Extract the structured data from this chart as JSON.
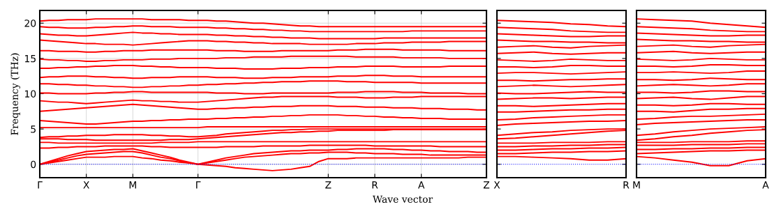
{
  "chart_data": [
    {
      "type": "line",
      "xlabel": "Wave vector",
      "ylabel": "Frequency (THz)",
      "categories": [
        "Γ",
        null,
        null,
        null,
        null,
        "X",
        null,
        null,
        null,
        null,
        "M",
        null,
        null,
        null,
        null,
        null,
        null,
        "Γ",
        null,
        null,
        null,
        null,
        null,
        null,
        null,
        null,
        null,
        null,
        null,
        null,
        null,
        "Z",
        null,
        null,
        null,
        null,
        "R",
        null,
        null,
        null,
        null,
        "A",
        null,
        null,
        null,
        null,
        null,
        null,
        "Z"
      ],
      "ylim": [
        -1.9,
        21.8
      ],
      "yticks": [
        0,
        5,
        10,
        15,
        20
      ],
      "grid": true,
      "ref_lines": [
        {
          "axis": "y",
          "value": 0,
          "color": "#0000ff",
          "line_style": "dotted"
        }
      ],
      "series": [
        {
          "color": "#ff0000",
          "values": [
            0,
            0.2,
            0.4,
            0.6,
            0.8,
            1.0,
            1.0,
            1.0,
            1.1,
            1.1,
            1.1,
            0.9,
            0.8,
            0.6,
            0.5,
            0.3,
            0.2,
            0,
            -0.1,
            -0.2,
            -0.3,
            -0.5,
            -0.6,
            -0.7,
            -0.8,
            -0.9,
            -0.8,
            -0.7,
            -0.5,
            -0.3,
            0.4,
            0.8,
            0.8,
            0.8,
            0.9,
            0.9,
            0.9,
            0.9,
            0.9,
            0.9,
            0.9,
            0.9,
            0.9,
            0.9,
            0.9,
            0.9,
            1.0,
            1.0,
            1.0
          ]
        },
        {
          "color": "#ff0000",
          "values": [
            0,
            0.3,
            0.6,
            0.9,
            1.2,
            1.4,
            1.5,
            1.6,
            1.7,
            1.8,
            1.8,
            1.6,
            1.3,
            1.0,
            0.8,
            0.5,
            0.2,
            0,
            0.2,
            0.4,
            0.6,
            0.8,
            1.0,
            1.1,
            1.2,
            1.3,
            1.4,
            1.5,
            1.5,
            1.6,
            1.6,
            1.7,
            1.7,
            1.7,
            1.6,
            1.6,
            1.5,
            1.5,
            1.5,
            1.4,
            1.4,
            1.4,
            1.3,
            1.3,
            1.3,
            1.3,
            1.3,
            1.3,
            1.3
          ]
        },
        {
          "color": "#ff0000",
          "values": [
            0,
            0.4,
            0.8,
            1.2,
            1.5,
            1.8,
            1.9,
            2.0,
            2.1,
            2.1,
            2.2,
            1.9,
            1.6,
            1.3,
            1.0,
            0.6,
            0.3,
            0,
            0.3,
            0.6,
            0.9,
            1.1,
            1.3,
            1.5,
            1.6,
            1.7,
            1.8,
            1.9,
            1.9,
            2.0,
            2.0,
            2.0,
            2.1,
            2.1,
            2.2,
            2.2,
            2.2,
            2.2,
            2.1,
            2.1,
            2.0,
            2.0,
            1.9,
            1.9,
            1.8,
            1.8,
            1.8,
            1.7,
            1.7
          ]
        },
        {
          "color": "#ff0000",
          "values": [
            2.3,
            2.3,
            2.4,
            2.4,
            2.5,
            2.5,
            2.5,
            2.6,
            2.6,
            2.6,
            2.6,
            2.6,
            2.5,
            2.5,
            2.4,
            2.4,
            2.4,
            2.4,
            2.4,
            2.4,
            2.5,
            2.5,
            2.5,
            2.5,
            2.6,
            2.6,
            2.6,
            2.6,
            2.6,
            2.7,
            2.7,
            2.7,
            2.7,
            2.7,
            2.7,
            2.7,
            2.6,
            2.6,
            2.6,
            2.6,
            2.6,
            2.6,
            2.6,
            2.5,
            2.5,
            2.5,
            2.5,
            2.5,
            2.5
          ]
        },
        {
          "color": "#ff0000",
          "values": [
            3.1,
            3.1,
            3.0,
            3.0,
            3.0,
            3.0,
            3.0,
            3.0,
            3.0,
            3.0,
            3.0,
            3.0,
            3.0,
            3.1,
            3.1,
            3.1,
            3.1,
            3.2,
            3.2,
            3.2,
            3.2,
            3.2,
            3.2,
            3.2,
            3.2,
            3.2,
            3.2,
            3.2,
            3.2,
            3.2,
            3.2,
            3.2,
            3.2,
            3.2,
            3.2,
            3.2,
            3.2,
            3.2,
            3.2,
            3.2,
            3.2,
            3.2,
            3.2,
            3.2,
            3.2,
            3.2,
            3.2,
            3.2,
            3.2
          ]
        },
        {
          "color": "#ff0000",
          "values": [
            3.6,
            3.6,
            3.6,
            3.5,
            3.5,
            3.5,
            3.4,
            3.4,
            3.4,
            3.4,
            3.4,
            3.4,
            3.4,
            3.4,
            3.5,
            3.5,
            3.5,
            3.6,
            3.7,
            3.8,
            3.9,
            4.0,
            4.1,
            4.2,
            4.3,
            4.4,
            4.5,
            4.5,
            4.6,
            4.6,
            4.7,
            4.7,
            4.8,
            4.8,
            4.8,
            4.8,
            4.8,
            4.8,
            4.9,
            4.9,
            4.9,
            4.9,
            4.9,
            4.9,
            4.9,
            4.9,
            4.9,
            4.9,
            4.9
          ]
        },
        {
          "color": "#ff0000",
          "values": [
            3.8,
            3.9,
            3.9,
            4.0,
            4.0,
            4.1,
            4.1,
            4.1,
            4.2,
            4.2,
            4.2,
            4.2,
            4.1,
            4.1,
            4.0,
            4.0,
            3.9,
            3.9,
            4.0,
            4.1,
            4.3,
            4.4,
            4.5,
            4.6,
            4.7,
            4.8,
            4.8,
            4.9,
            4.9,
            5.0,
            5.0,
            5.0,
            5.0,
            5.0,
            5.0,
            5.0,
            5.0,
            5.0,
            5.0,
            5.0,
            5.0,
            5.0,
            5.0,
            5.0,
            5.0,
            5.0,
            5.0,
            5.0,
            5.0
          ]
        },
        {
          "color": "#ff0000",
          "values": [
            5.2,
            5.2,
            5.2,
            5.2,
            5.2,
            5.2,
            5.2,
            5.2,
            5.2,
            5.2,
            5.2,
            5.2,
            5.2,
            5.2,
            5.2,
            5.2,
            5.2,
            5.2,
            5.3,
            5.3,
            5.3,
            5.3,
            5.3,
            5.3,
            5.3,
            5.3,
            5.3,
            5.3,
            5.3,
            5.3,
            5.3,
            5.3,
            5.3,
            5.3,
            5.3,
            5.3,
            5.3,
            5.3,
            5.3,
            5.3,
            5.3,
            5.3,
            5.3,
            5.3,
            5.3,
            5.3,
            5.3,
            5.3,
            5.3
          ]
        },
        {
          "color": "#ff0000",
          "values": [
            6.2,
            6.1,
            6.0,
            5.9,
            5.8,
            5.7,
            5.7,
            5.8,
            5.9,
            6.0,
            6.1,
            6.1,
            6.2,
            6.2,
            6.3,
            6.3,
            6.4,
            6.4,
            6.4,
            6.5,
            6.5,
            6.6,
            6.6,
            6.7,
            6.7,
            6.8,
            6.8,
            6.9,
            6.9,
            7.0,
            7.0,
            7.0,
            7.0,
            6.9,
            6.9,
            6.8,
            6.8,
            6.7,
            6.7,
            6.6,
            6.6,
            6.5,
            6.5,
            6.5,
            6.4,
            6.4,
            6.4,
            6.4,
            6.4
          ]
        },
        {
          "color": "#ff0000",
          "values": [
            7.5,
            7.6,
            7.7,
            7.8,
            7.9,
            8.0,
            8.1,
            8.2,
            8.3,
            8.4,
            8.5,
            8.4,
            8.3,
            8.2,
            8.1,
            8.0,
            7.9,
            7.8,
            7.8,
            7.9,
            7.9,
            8.0,
            8.0,
            8.1,
            8.1,
            8.2,
            8.2,
            8.2,
            8.3,
            8.3,
            8.3,
            8.3,
            8.2,
            8.2,
            8.2,
            8.1,
            8.1,
            8.1,
            8.0,
            8.0,
            8.0,
            7.9,
            7.9,
            7.9,
            7.8,
            7.8,
            7.8,
            7.7,
            7.7
          ]
        },
        {
          "color": "#ff0000",
          "values": [
            9.0,
            8.9,
            8.8,
            8.8,
            8.7,
            8.6,
            8.7,
            8.8,
            8.9,
            9.0,
            9.1,
            9.0,
            9.0,
            8.9,
            8.9,
            8.8,
            8.8,
            8.8,
            8.9,
            9.0,
            9.1,
            9.2,
            9.3,
            9.4,
            9.5,
            9.5,
            9.6,
            9.6,
            9.6,
            9.6,
            9.6,
            9.6,
            9.5,
            9.5,
            9.5,
            9.4,
            9.4,
            9.4,
            9.5,
            9.5,
            9.5,
            9.6,
            9.6,
            9.6,
            9.6,
            9.6,
            9.6,
            9.6,
            9.6
          ]
        },
        {
          "color": "#ff0000",
          "values": [
            10.1,
            10.1,
            10.0,
            10.0,
            10.0,
            10.0,
            10.1,
            10.1,
            10.2,
            10.2,
            10.3,
            10.3,
            10.2,
            10.2,
            10.2,
            10.2,
            10.2,
            10.2,
            10.2,
            10.1,
            10.1,
            10.1,
            10.0,
            10.0,
            10.0,
            10.1,
            10.1,
            10.1,
            10.1,
            10.1,
            10.1,
            10.1,
            10.2,
            10.2,
            10.2,
            10.3,
            10.3,
            10.3,
            10.3,
            10.2,
            10.2,
            10.2,
            10.1,
            10.1,
            10.1,
            10.1,
            10.0,
            10.0,
            10.0
          ]
        },
        {
          "color": "#ff0000",
          "values": [
            11.4,
            11.4,
            11.3,
            11.3,
            11.2,
            11.2,
            11.1,
            11.1,
            11.0,
            11.0,
            10.9,
            10.9,
            11.0,
            11.0,
            11.1,
            11.1,
            11.2,
            11.2,
            11.3,
            11.3,
            11.4,
            11.4,
            11.5,
            11.5,
            11.6,
            11.6,
            11.7,
            11.7,
            11.7,
            11.8,
            11.8,
            11.8,
            11.8,
            11.7,
            11.7,
            11.7,
            11.6,
            11.6,
            11.6,
            11.6,
            11.6,
            11.5,
            11.5,
            11.5,
            11.5,
            11.5,
            11.5,
            11.5,
            11.5
          ]
        },
        {
          "color": "#ff0000",
          "values": [
            12.3,
            12.4,
            12.4,
            12.5,
            12.5,
            12.5,
            12.4,
            12.4,
            12.3,
            12.3,
            12.2,
            12.2,
            12.3,
            12.3,
            12.3,
            12.4,
            12.4,
            12.4,
            12.4,
            12.3,
            12.3,
            12.3,
            12.2,
            12.2,
            12.2,
            12.3,
            12.3,
            12.3,
            12.4,
            12.4,
            12.4,
            12.4,
            12.5,
            12.5,
            12.5,
            12.6,
            12.6,
            12.6,
            12.5,
            12.5,
            12.5,
            12.4,
            12.4,
            12.4,
            12.4,
            12.4,
            12.4,
            12.4,
            12.4
          ]
        },
        {
          "color": "#ff0000",
          "values": [
            13.6,
            13.6,
            13.7,
            13.7,
            13.8,
            13.8,
            13.9,
            13.9,
            14.0,
            14.0,
            14.0,
            13.9,
            13.9,
            13.8,
            13.8,
            13.7,
            13.7,
            13.7,
            13.7,
            13.6,
            13.6,
            13.6,
            13.5,
            13.5,
            13.5,
            13.5,
            13.6,
            13.6,
            13.6,
            13.7,
            13.7,
            13.7,
            13.8,
            13.8,
            13.8,
            13.9,
            13.9,
            13.9,
            13.9,
            13.8,
            13.8,
            13.8,
            13.8,
            13.8,
            13.9,
            13.9,
            13.9,
            13.9,
            13.9
          ]
        },
        {
          "color": "#ff0000",
          "values": [
            14.9,
            14.8,
            14.8,
            14.7,
            14.7,
            14.6,
            14.6,
            14.7,
            14.7,
            14.8,
            14.8,
            14.8,
            14.9,
            14.9,
            14.9,
            15.0,
            15.0,
            15.0,
            15.0,
            15.0,
            15.1,
            15.1,
            15.1,
            15.2,
            15.2,
            15.2,
            15.2,
            15.3,
            15.3,
            15.3,
            15.3,
            15.3,
            15.3,
            15.3,
            15.2,
            15.2,
            15.2,
            15.2,
            15.2,
            15.1,
            15.1,
            15.1,
            15.1,
            15.1,
            15.0,
            15.0,
            15.0,
            15.0,
            15.0
          ]
        },
        {
          "color": "#ff0000",
          "values": [
            16.1,
            16.1,
            16.0,
            16.0,
            16.0,
            15.9,
            15.9,
            16.0,
            16.0,
            16.1,
            16.1,
            16.1,
            16.2,
            16.2,
            16.2,
            16.2,
            16.2,
            16.2,
            16.2,
            16.1,
            16.1,
            16.1,
            16.0,
            16.0,
            16.0,
            16.0,
            16.1,
            16.1,
            16.1,
            16.1,
            16.1,
            16.1,
            16.2,
            16.2,
            16.2,
            16.3,
            16.3,
            16.3,
            16.3,
            16.2,
            16.2,
            16.2,
            16.2,
            16.2,
            16.1,
            16.1,
            16.1,
            16.1,
            16.1
          ]
        },
        {
          "color": "#ff0000",
          "values": [
            17.6,
            17.5,
            17.4,
            17.3,
            17.2,
            17.1,
            17.1,
            17.0,
            17.0,
            17.0,
            16.9,
            17.0,
            17.1,
            17.2,
            17.3,
            17.4,
            17.5,
            17.5,
            17.5,
            17.4,
            17.4,
            17.3,
            17.3,
            17.2,
            17.2,
            17.1,
            17.1,
            17.1,
            17.1,
            17.0,
            17.0,
            17.0,
            17.0,
            17.0,
            17.1,
            17.1,
            17.1,
            17.2,
            17.2,
            17.2,
            17.3,
            17.3,
            17.3,
            17.3,
            17.4,
            17.4,
            17.4,
            17.4,
            17.4
          ]
        },
        {
          "color": "#ff0000",
          "values": [
            18.5,
            18.4,
            18.3,
            18.3,
            18.2,
            18.2,
            18.3,
            18.4,
            18.5,
            18.6,
            18.7,
            18.6,
            18.6,
            18.5,
            18.5,
            18.4,
            18.4,
            18.4,
            18.4,
            18.3,
            18.3,
            18.2,
            18.2,
            18.1,
            18.1,
            18.0,
            18.0,
            17.9,
            17.9,
            17.9,
            17.8,
            17.8,
            17.8,
            17.8,
            17.8,
            17.8,
            17.8,
            17.9,
            17.9,
            17.9,
            17.9,
            17.9,
            17.9,
            17.9,
            17.9,
            17.9,
            17.9,
            17.9,
            17.9
          ]
        },
        {
          "color": "#ff0000",
          "values": [
            19.5,
            19.4,
            19.4,
            19.3,
            19.3,
            19.3,
            19.4,
            19.4,
            19.5,
            19.5,
            19.6,
            19.6,
            19.5,
            19.5,
            19.5,
            19.4,
            19.4,
            19.4,
            19.4,
            19.3,
            19.3,
            19.2,
            19.2,
            19.1,
            19.1,
            19.0,
            19.0,
            18.9,
            18.9,
            18.8,
            18.8,
            18.8,
            18.8,
            18.8,
            18.8,
            18.8,
            18.8,
            18.8,
            18.8,
            18.8,
            18.9,
            18.9,
            18.9,
            18.9,
            18.9,
            18.9,
            18.9,
            18.9,
            18.9
          ]
        },
        {
          "color": "#ff0000",
          "values": [
            20.3,
            20.4,
            20.4,
            20.5,
            20.5,
            20.5,
            20.6,
            20.6,
            20.6,
            20.6,
            20.6,
            20.6,
            20.5,
            20.5,
            20.5,
            20.5,
            20.4,
            20.4,
            20.4,
            20.3,
            20.3,
            20.2,
            20.1,
            20.0,
            20.0,
            19.9,
            19.8,
            19.7,
            19.6,
            19.6,
            19.5,
            19.5,
            19.5,
            19.5,
            19.5,
            19.5,
            19.5,
            19.5,
            19.5,
            19.5,
            19.5,
            19.5,
            19.5,
            19.5,
            19.5,
            19.5,
            19.5,
            19.5,
            19.5
          ]
        }
      ]
    },
    {
      "type": "line",
      "categories": [
        "X",
        null,
        null,
        null,
        null,
        null,
        null,
        "R"
      ],
      "ylim": [
        -1.9,
        21.8
      ],
      "yticks": [
        0,
        5,
        10,
        15,
        20
      ],
      "tick_labels": "x",
      "ref_lines": [
        {
          "axis": "y",
          "value": 0,
          "color": "#0000ff",
          "line_style": "dotted"
        }
      ],
      "series": [
        {
          "color": "#ff0000",
          "values": [
            1.1,
            1.1,
            1.0,
            0.9,
            0.8,
            0.6,
            0.6,
            0.8
          ]
        },
        {
          "color": "#ff0000",
          "values": [
            1.5,
            1.5,
            1.6,
            1.7,
            1.7,
            1.8,
            1.8,
            1.9
          ]
        },
        {
          "color": "#ff0000",
          "values": [
            2.0,
            2.0,
            2.1,
            2.2,
            2.2,
            2.3,
            2.3,
            2.4
          ]
        },
        {
          "color": "#ff0000",
          "values": [
            2.5,
            2.5,
            2.6,
            2.6,
            2.7,
            2.7,
            2.8,
            2.8
          ]
        },
        {
          "color": "#ff0000",
          "values": [
            3.0,
            3.0,
            3.0,
            3.1,
            3.1,
            3.1,
            3.2,
            3.2
          ]
        },
        {
          "color": "#ff0000",
          "values": [
            3.6,
            3.7,
            3.9,
            4.1,
            4.3,
            4.5,
            4.7,
            4.8
          ]
        },
        {
          "color": "#ff0000",
          "values": [
            4.1,
            4.3,
            4.5,
            4.6,
            4.8,
            4.9,
            5.0,
            5.0
          ]
        },
        {
          "color": "#ff0000",
          "values": [
            5.5,
            5.7,
            5.8,
            5.9,
            6.0,
            6.1,
            6.1,
            6.2
          ]
        },
        {
          "color": "#ff0000",
          "values": [
            6.3,
            6.4,
            6.6,
            6.7,
            6.8,
            6.9,
            7.0,
            7.0
          ]
        },
        {
          "color": "#ff0000",
          "values": [
            7.4,
            7.4,
            7.5,
            7.6,
            7.7,
            7.7,
            7.8,
            7.8
          ]
        },
        {
          "color": "#ff0000",
          "values": [
            8.3,
            8.3,
            8.2,
            8.3,
            8.4,
            8.5,
            8.6,
            8.6
          ]
        },
        {
          "color": "#ff0000",
          "values": [
            9.2,
            9.3,
            9.4,
            9.4,
            9.3,
            9.4,
            9.5,
            9.5
          ]
        },
        {
          "color": "#ff0000",
          "values": [
            10.1,
            10.0,
            10.0,
            10.1,
            10.2,
            10.3,
            10.2,
            10.2
          ]
        },
        {
          "color": "#ff0000",
          "values": [
            11.0,
            11.1,
            11.2,
            11.1,
            11.0,
            11.1,
            11.2,
            11.3
          ]
        },
        {
          "color": "#ff0000",
          "values": [
            11.9,
            11.9,
            11.8,
            11.9,
            12.0,
            12.0,
            12.1,
            12.1
          ]
        },
        {
          "color": "#ff0000",
          "values": [
            12.9,
            13.0,
            13.0,
            12.9,
            12.8,
            12.9,
            13.0,
            13.1
          ]
        },
        {
          "color": "#ff0000",
          "values": [
            13.8,
            13.8,
            13.7,
            13.8,
            14.0,
            14.0,
            13.9,
            13.9
          ]
        },
        {
          "color": "#ff0000",
          "values": [
            14.8,
            14.7,
            14.6,
            14.7,
            14.9,
            14.8,
            14.7,
            14.7
          ]
        },
        {
          "color": "#ff0000",
          "values": [
            15.7,
            15.8,
            15.9,
            15.7,
            15.6,
            15.7,
            15.8,
            15.8
          ]
        },
        {
          "color": "#ff0000",
          "values": [
            16.6,
            16.7,
            16.8,
            16.6,
            16.5,
            16.7,
            16.8,
            16.9
          ]
        },
        {
          "color": "#ff0000",
          "values": [
            17.6,
            17.5,
            17.4,
            17.4,
            17.3,
            17.3,
            17.2,
            17.2
          ]
        },
        {
          "color": "#ff0000",
          "values": [
            18.5,
            18.4,
            18.3,
            18.2,
            18.1,
            18.1,
            18.2,
            18.2
          ]
        },
        {
          "color": "#ff0000",
          "values": [
            19.4,
            19.3,
            19.2,
            19.1,
            18.9,
            18.8,
            18.7,
            18.7
          ]
        },
        {
          "color": "#ff0000",
          "values": [
            20.4,
            20.3,
            20.2,
            20.1,
            19.9,
            19.8,
            19.6,
            19.5
          ]
        }
      ]
    },
    {
      "type": "line",
      "categories": [
        "M",
        null,
        null,
        null,
        null,
        null,
        null,
        "A"
      ],
      "ylim": [
        -1.9,
        21.8
      ],
      "yticks": [
        0,
        5,
        10,
        15,
        20
      ],
      "tick_labels": "x",
      "ref_lines": [
        {
          "axis": "y",
          "value": 0,
          "color": "#0000ff",
          "line_style": "dotted"
        }
      ],
      "series": [
        {
          "color": "#ff0000",
          "values": [
            1.1,
            0.9,
            0.6,
            0.3,
            -0.2,
            -0.2,
            0.5,
            0.8
          ]
        },
        {
          "color": "#ff0000",
          "values": [
            1.5,
            1.6,
            1.7,
            1.8,
            1.9,
            1.9,
            2.0,
            2.0
          ]
        },
        {
          "color": "#ff0000",
          "values": [
            2.1,
            2.1,
            2.2,
            2.2,
            2.3,
            2.3,
            2.4,
            2.4
          ]
        },
        {
          "color": "#ff0000",
          "values": [
            2.7,
            2.7,
            2.7,
            2.8,
            2.8,
            2.8,
            2.9,
            2.9
          ]
        },
        {
          "color": "#ff0000",
          "values": [
            3.1,
            3.1,
            3.1,
            3.2,
            3.2,
            3.2,
            3.3,
            3.3
          ]
        },
        {
          "color": "#ff0000",
          "values": [
            3.4,
            3.6,
            3.9,
            4.1,
            4.4,
            4.6,
            4.8,
            4.9
          ]
        },
        {
          "color": "#ff0000",
          "values": [
            4.1,
            4.3,
            4.6,
            4.8,
            5.0,
            5.1,
            5.2,
            5.3
          ]
        },
        {
          "color": "#ff0000",
          "values": [
            5.6,
            5.8,
            5.9,
            6.0,
            6.1,
            6.2,
            6.3,
            6.3
          ]
        },
        {
          "color": "#ff0000",
          "values": [
            6.4,
            6.5,
            6.7,
            6.8,
            6.8,
            6.9,
            7.0,
            7.1
          ]
        },
        {
          "color": "#ff0000",
          "values": [
            7.5,
            7.5,
            7.4,
            7.6,
            7.8,
            7.8,
            7.9,
            7.9
          ]
        },
        {
          "color": "#ff0000",
          "values": [
            8.4,
            8.4,
            8.3,
            8.4,
            8.6,
            8.6,
            8.5,
            8.5
          ]
        },
        {
          "color": "#ff0000",
          "values": [
            9.3,
            9.4,
            9.5,
            9.3,
            9.2,
            9.4,
            9.6,
            9.6
          ]
        },
        {
          "color": "#ff0000",
          "values": [
            10.2,
            10.2,
            10.1,
            10.2,
            10.4,
            10.4,
            10.3,
            10.3
          ]
        },
        {
          "color": "#ff0000",
          "values": [
            11.1,
            11.2,
            11.3,
            11.2,
            11.1,
            11.2,
            11.4,
            11.4
          ]
        },
        {
          "color": "#ff0000",
          "values": [
            12.0,
            12.0,
            11.9,
            12.0,
            12.2,
            12.1,
            12.0,
            12.0
          ]
        },
        {
          "color": "#ff0000",
          "values": [
            13.0,
            13.0,
            13.1,
            13.0,
            12.9,
            13.0,
            13.2,
            13.2
          ]
        },
        {
          "color": "#ff0000",
          "values": [
            13.9,
            13.9,
            13.8,
            13.9,
            14.1,
            14.1,
            14.0,
            14.0
          ]
        },
        {
          "color": "#ff0000",
          "values": [
            14.9,
            14.8,
            14.7,
            14.8,
            15.0,
            14.9,
            14.8,
            14.8
          ]
        },
        {
          "color": "#ff0000",
          "values": [
            15.8,
            15.9,
            16.0,
            15.8,
            15.7,
            15.8,
            15.9,
            15.9
          ]
        },
        {
          "color": "#ff0000",
          "values": [
            16.7,
            16.8,
            16.9,
            16.7,
            16.6,
            16.8,
            16.9,
            17.0
          ]
        },
        {
          "color": "#ff0000",
          "values": [
            17.7,
            17.6,
            17.5,
            17.5,
            17.4,
            17.4,
            17.3,
            17.3
          ]
        },
        {
          "color": "#ff0000",
          "values": [
            18.6,
            18.5,
            18.4,
            18.3,
            18.2,
            18.2,
            18.3,
            18.3
          ]
        },
        {
          "color": "#ff0000",
          "values": [
            19.5,
            19.4,
            19.3,
            19.2,
            19.0,
            18.9,
            18.8,
            18.8
          ]
        },
        {
          "color": "#ff0000",
          "values": [
            20.6,
            20.5,
            20.4,
            20.3,
            20.0,
            19.8,
            19.6,
            19.4
          ]
        }
      ]
    }
  ]
}
